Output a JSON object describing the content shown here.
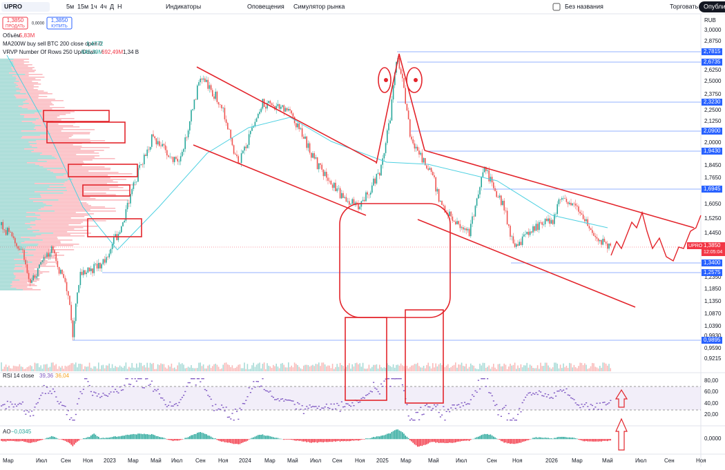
{
  "toolbar": {
    "symbol": "UPRO",
    "timeframes": [
      "5м",
      "15м",
      "1ч",
      "4ч",
      "Д",
      "Н"
    ],
    "indicators": "Индикаторы",
    "alerts": "Оповещения",
    "simulator": "Симулятор рынка",
    "layout_name": "Без названия",
    "trade": "Торговать",
    "publish": "Опубликовать"
  },
  "order": {
    "sell_price": "1,3850",
    "sell": "ПРОДАТЬ",
    "spread": "0,0000",
    "buy_price": "1,3850",
    "buy": "КУПИТЬ"
  },
  "legend": {
    "volume": "Объём",
    "volume_value": "5,83M",
    "ma": "MA200W buy sell BTC 200 close open 0",
    "ma_value": "1,4772",
    "vrvp": "VRVP Number Of Rows 250 Up/Down",
    "vrvp_up": "645,39M",
    "vrvp_down": "692,49M",
    "vrvp_total": "1,34 B",
    "rsi": "RSI 14 close",
    "rsi_value": "39,36",
    "rsi_ma": "36,04",
    "ao": "AO",
    "ao_value": "−0,0345"
  },
  "price_axis": {
    "currency": "RUB",
    "labels": [
      "3,0000",
      "2,8750",
      "2,6250",
      "2,5000",
      "2,3750",
      "2,2500",
      "2,1250",
      "2,0000",
      "1,8450",
      "1,7650",
      "1,6050",
      "1,5250",
      "1,4450",
      "1,2350",
      "1,1850",
      "1,1350",
      "1,0870",
      "1,0390",
      "0,9930",
      "0,9590",
      "0,9215"
    ],
    "levels": [
      "2,7815",
      "2,6735",
      "2,3230",
      "2,0900",
      "1,9430",
      "1,6945",
      "1,3400",
      "1,2575",
      "0,9895"
    ],
    "current": {
      "symbol": "UPRO",
      "price": "1,3850",
      "countdown": "12:05:04"
    }
  },
  "rsi_axis": [
    "80,00",
    "60,00",
    "40,00",
    "20,00"
  ],
  "ao_axis": [
    "0,0000"
  ],
  "time_axis": [
    "Мар",
    "Июл",
    "Сен",
    "Ноя",
    "2023",
    "Мар",
    "Май",
    "Июл",
    "Сен",
    "Ноя",
    "2024",
    "Мар",
    "Май",
    "Июл",
    "Сен",
    "Ноя",
    "2025",
    "Мар",
    "Май",
    "Июл",
    "Сен",
    "Ноя",
    "2026",
    "Мар",
    "Май",
    "Июл",
    "Сен",
    "Ноя"
  ]
}
